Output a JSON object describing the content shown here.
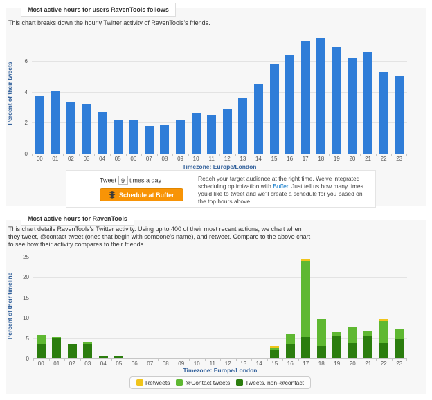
{
  "section1": {
    "title": "Most active hours for users RavenTools follows",
    "subtitle": "This chart breaks down the hourly Twitter activity of RavenTools's friends."
  },
  "buffer_box": {
    "tweet_label": "Tweet",
    "times_value": "9",
    "times_label": "times a day",
    "button_label": "Schedule at Buffer",
    "button_color": "#f89406",
    "text_before_link": "Reach your target audience at the right time. We've integrated scheduling optimization with ",
    "link_text": "Buffer",
    "text_after_link": ". Just tell us how many times you'd like to tweet and we'll create a schedule for you based on the top hours above."
  },
  "section2": {
    "title": "Most active hours for RavenTools",
    "subtitle": "This chart details RavenTools's Twitter activity. Using up to 400 of their most recent actions, we chart when they tweet, @contact tweet (ones that begin with someone's name), and retweet. Compare to the above chart to see how their activity compares to their friends."
  },
  "chart_data": [
    {
      "type": "bar",
      "title": "Most active hours for users RavenTools follows",
      "categories": [
        "00",
        "01",
        "02",
        "03",
        "04",
        "05",
        "06",
        "07",
        "08",
        "09",
        "10",
        "11",
        "12",
        "13",
        "14",
        "15",
        "16",
        "17",
        "18",
        "19",
        "20",
        "21",
        "22",
        "23"
      ],
      "values": [
        3.7,
        4.1,
        3.3,
        3.2,
        2.7,
        2.2,
        2.2,
        1.8,
        1.9,
        2.2,
        2.6,
        2.5,
        2.9,
        3.6,
        4.5,
        5.8,
        6.4,
        7.3,
        7.5,
        6.9,
        6.2,
        6.6,
        5.3,
        5.0
      ],
      "xlabel": "Timezone: Europe/London",
      "ylabel": "Percent of their tweets",
      "ylim": [
        0,
        7.8
      ],
      "yticks": [
        0,
        2,
        4,
        6
      ],
      "grid": true,
      "legend": false,
      "bar_color": "#2f7dd8"
    },
    {
      "type": "bar",
      "stacked": true,
      "title": "Most active hours for RavenTools",
      "categories": [
        "00",
        "01",
        "02",
        "03",
        "04",
        "05",
        "06",
        "07",
        "08",
        "09",
        "10",
        "11",
        "12",
        "13",
        "14",
        "15",
        "16",
        "17",
        "18",
        "19",
        "20",
        "21",
        "22",
        "23"
      ],
      "series": [
        {
          "name": "Tweets, non-@contact",
          "color": "#2b7d0e",
          "values": [
            3.5,
            5.0,
            3.5,
            3.5,
            0.5,
            0.5,
            0,
            0,
            0,
            0,
            0,
            0,
            0,
            0,
            0,
            2.0,
            3.5,
            5.25,
            3.0,
            5.5,
            3.75,
            5.5,
            3.75,
            4.75
          ]
        },
        {
          "name": "@Contact tweets",
          "color": "#5fb832",
          "values": [
            2.25,
            0.3,
            0,
            0.5,
            0,
            0,
            0,
            0,
            0,
            0,
            0,
            0,
            0,
            0,
            0,
            0.5,
            2.5,
            18.75,
            6.75,
            1.0,
            4.0,
            1.25,
            5.4,
            2.5
          ]
        },
        {
          "name": "Retweets",
          "color": "#f0c41b",
          "values": [
            0,
            0,
            0,
            0,
            0,
            0,
            0,
            0,
            0,
            0,
            0,
            0,
            0,
            0,
            0,
            0.5,
            0,
            0.5,
            0,
            0,
            0,
            0,
            0.5,
            0
          ]
        }
      ],
      "legend_items": [
        {
          "label": "Retweets",
          "color": "#f0c41b"
        },
        {
          "label": "@Contact tweets",
          "color": "#5fb832"
        },
        {
          "label": "Tweets, non-@contact",
          "color": "#2b7d0e"
        }
      ],
      "xlabel": "Timezone: Europe/London",
      "ylabel": "Percent of their timeline",
      "ylim": [
        0,
        25.8
      ],
      "yticks": [
        0,
        5,
        10,
        15,
        20,
        25
      ],
      "grid": true,
      "legend_position": "bottom-center"
    }
  ]
}
